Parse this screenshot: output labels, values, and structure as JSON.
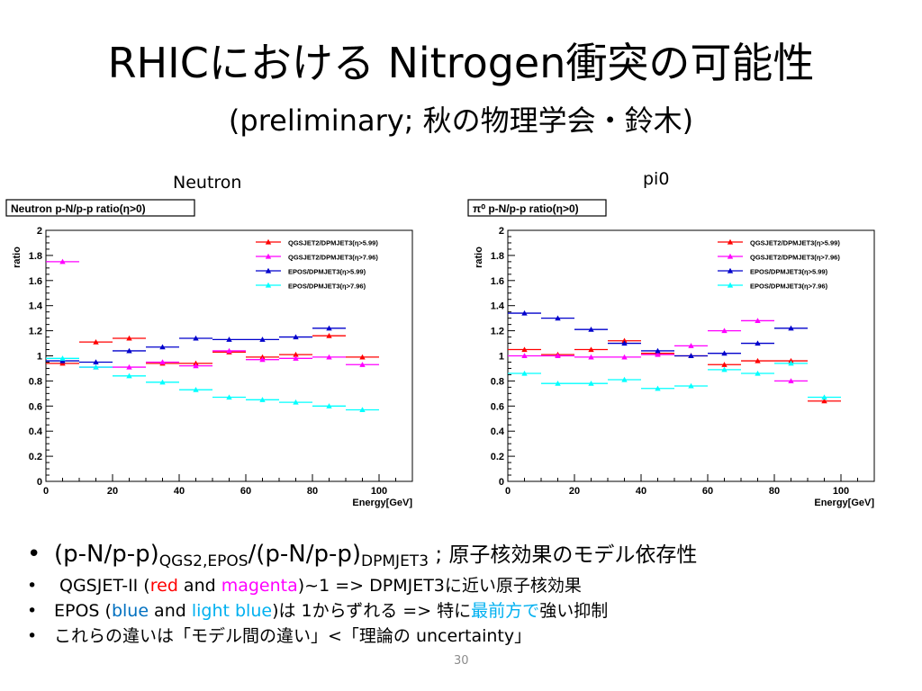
{
  "slide": {
    "title": "RHICにおける Nitrogen衝突の可能性",
    "subtitle": "(preliminary; 秋の物理学会・鈴木)",
    "page_number": "30"
  },
  "plots": {
    "left_heading": "Neutron",
    "right_heading": "pi0"
  },
  "chart_data": [
    {
      "type": "scatter",
      "title": "Neutron p-N/p-p ratio(η>0)",
      "xlabel": "Energy[GeV]",
      "ylabel": "ratio",
      "xlim": [
        0,
        110
      ],
      "ylim": [
        0,
        2
      ],
      "xticks": [
        "0",
        "20",
        "40",
        "60",
        "80",
        "100"
      ],
      "yticks": [
        "0",
        "0.2",
        "0.4",
        "0.6",
        "0.8",
        "1",
        "1.2",
        "1.4",
        "1.6",
        "1.8",
        "2"
      ],
      "legend_placement": "top-right",
      "series": [
        {
          "name": "QGSJET2/DPMJET3(η>5.99)",
          "color": "#ff0000",
          "x": [
            5,
            15,
            25,
            35,
            45,
            55,
            65,
            75,
            85,
            95
          ],
          "y": [
            0.94,
            1.11,
            1.14,
            0.94,
            0.94,
            1.03,
            0.99,
            1.01,
            1.16,
            0.99
          ]
        },
        {
          "name": "QGSJET2/DPMJET3(η>7.96)",
          "color": "#ff00ff",
          "x": [
            5,
            15,
            25,
            35,
            45,
            55,
            65,
            75,
            85,
            95
          ],
          "y": [
            1.75,
            0.91,
            0.91,
            0.95,
            0.92,
            1.04,
            0.97,
            0.98,
            0.99,
            0.93
          ]
        },
        {
          "name": "EPOS/DPMJET3(η>5.99)",
          "color": "#0000cc",
          "x": [
            5,
            15,
            25,
            35,
            45,
            55,
            65,
            75,
            85,
            95
          ],
          "y": [
            0.96,
            0.95,
            1.04,
            1.07,
            1.14,
            1.13,
            1.13,
            1.15,
            1.22,
            null
          ]
        },
        {
          "name": "EPOS/DPMJET3(η>7.96)",
          "color": "#00ffff",
          "x": [
            5,
            15,
            25,
            35,
            45,
            55,
            65,
            75,
            85,
            95
          ],
          "y": [
            0.98,
            0.91,
            0.84,
            0.79,
            0.73,
            0.67,
            0.65,
            0.63,
            0.6,
            0.57
          ]
        }
      ]
    },
    {
      "type": "scatter",
      "title": "π⁰ p-N/p-p ratio(η>0)",
      "xlabel": "Energy[GeV]",
      "ylabel": "ratio",
      "xlim": [
        0,
        110
      ],
      "ylim": [
        0,
        2
      ],
      "xticks": [
        "0",
        "20",
        "40",
        "60",
        "80",
        "100"
      ],
      "yticks": [
        "0",
        "0.2",
        "0.4",
        "0.6",
        "0.8",
        "1",
        "1.2",
        "1.4",
        "1.6",
        "1.8",
        "2"
      ],
      "legend_placement": "top-right",
      "series": [
        {
          "name": "QGSJET2/DPMJET3(η>5.99)",
          "color": "#ff0000",
          "x": [
            5,
            15,
            25,
            35,
            45,
            55,
            65,
            75,
            85,
            95
          ],
          "y": [
            1.05,
            1.01,
            1.05,
            1.12,
            1.02,
            1.0,
            0.93,
            0.96,
            0.96,
            0.64
          ]
        },
        {
          "name": "QGSJET2/DPMJET3(η>7.96)",
          "color": "#ff00ff",
          "x": [
            5,
            15,
            25,
            35,
            45,
            55,
            65,
            75,
            85,
            95
          ],
          "y": [
            1.0,
            1.0,
            0.99,
            0.99,
            1.01,
            1.08,
            1.2,
            1.28,
            0.8,
            null
          ]
        },
        {
          "name": "EPOS/DPMJET3(η>5.99)",
          "color": "#0000cc",
          "x": [
            5,
            15,
            25,
            35,
            45,
            55,
            65,
            75,
            85,
            95
          ],
          "y": [
            1.34,
            1.3,
            1.21,
            1.1,
            1.04,
            1.0,
            1.02,
            1.1,
            1.22,
            null
          ]
        },
        {
          "name": "EPOS/DPMJET3(η>7.96)",
          "color": "#00ffff",
          "x": [
            5,
            15,
            25,
            35,
            45,
            55,
            65,
            75,
            85,
            95
          ],
          "y": [
            0.86,
            0.78,
            0.78,
            0.81,
            0.74,
            0.76,
            0.89,
            0.86,
            0.94,
            0.67
          ]
        }
      ]
    }
  ],
  "bullets": {
    "b1": {
      "dot": "•",
      "p1": "(p-N/p-p)",
      "s1": "QGS2,EPOS",
      "p2": "/(p-N/p-p)",
      "s2": "DPMJET3",
      "p3": " ; 原子核効果のモデル依存性"
    },
    "b2": {
      "dot": "•",
      "t1": "QGSJET-II (",
      "red": "red",
      "t2": " and ",
      "magenta": "magenta",
      "t3": ")~1 => DPMJET3に近い原子核効果"
    },
    "b3": {
      "dot": "•",
      "t1": "EPOS (",
      "blue": "blue",
      "t2": " and ",
      "lightblue": "light blue",
      "t3": ")は 1からずれる => 特に",
      "front": "最前方で",
      "t4": "強い抑制"
    },
    "b4": {
      "dot": "•",
      "t1": "これらの違いは「モデル間の違い」<「理論の uncertainty」"
    }
  }
}
